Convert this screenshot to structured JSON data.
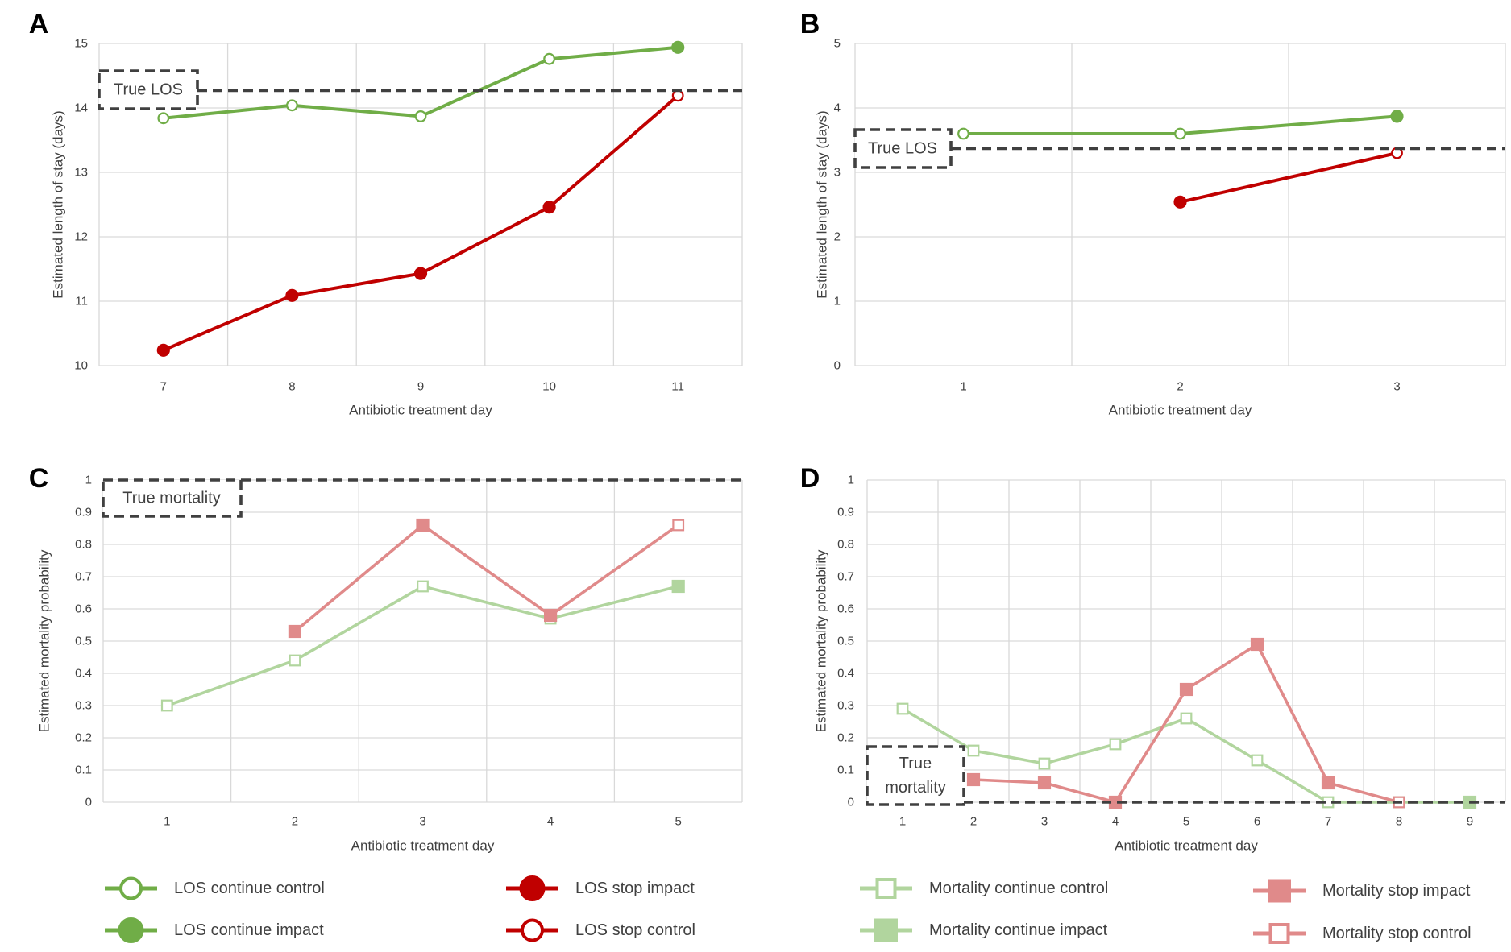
{
  "legend": [
    {
      "label": "LOS continue control",
      "color": "#70AD47",
      "marker": "circle",
      "filled": false
    },
    {
      "label": "LOS continue impact",
      "color": "#70AD47",
      "marker": "circle",
      "filled": true
    },
    {
      "label": "LOS stop impact",
      "color": "#C00000",
      "marker": "circle",
      "filled": true
    },
    {
      "label": "LOS stop control",
      "color": "#C00000",
      "marker": "circle",
      "filled": false
    },
    {
      "label": "Mortality continue control",
      "color": "#B1D59E",
      "marker": "square",
      "filled": false
    },
    {
      "label": "Mortality continue impact",
      "color": "#B1D59E",
      "marker": "square",
      "filled": true
    },
    {
      "label": "Mortality stop impact",
      "color": "#E08A8A",
      "marker": "square",
      "filled": true
    },
    {
      "label": "Mortality stop control",
      "color": "#E08A8A",
      "marker": "square",
      "filled": false
    }
  ],
  "reference_color": "#404040",
  "grid_color": "#D9D9D9",
  "chart_data": [
    {
      "panel": "A",
      "type": "line",
      "xlabel": "Antibiotic treatment day",
      "ylabel": "Estimated length of stay (days)",
      "categories": [
        "7",
        "8",
        "9",
        "10",
        "11"
      ],
      "ylim": [
        10,
        15
      ],
      "yticks": [
        "10",
        "11",
        "12",
        "13",
        "14",
        "15"
      ],
      "reference": {
        "label_lines": [
          "True LOS"
        ],
        "value": 14.27
      },
      "series": [
        {
          "legend": 0,
          "values": [
            13.84,
            14.04,
            13.87,
            14.76,
            null
          ]
        },
        {
          "legend": 1,
          "values": [
            null,
            null,
            null,
            null,
            14.94
          ]
        },
        {
          "legend": 2,
          "values": [
            10.24,
            11.09,
            11.43,
            12.46,
            null
          ]
        },
        {
          "legend": 3,
          "values": [
            null,
            null,
            null,
            null,
            14.19
          ]
        }
      ],
      "lines": [
        [
          0,
          1
        ],
        [
          2,
          3
        ]
      ]
    },
    {
      "panel": "B",
      "type": "line",
      "xlabel": "Antibiotic treatment day",
      "ylabel": "Estimated length of stay (days)",
      "categories": [
        "1",
        "2",
        "3"
      ],
      "ylim": [
        0,
        5
      ],
      "yticks": [
        "0",
        "1",
        "2",
        "3",
        "4",
        "5"
      ],
      "reference": {
        "label_lines": [
          "True LOS"
        ],
        "value": 3.37
      },
      "series": [
        {
          "legend": 0,
          "values": [
            3.6,
            3.6,
            null
          ]
        },
        {
          "legend": 1,
          "values": [
            null,
            null,
            3.87
          ]
        },
        {
          "legend": 2,
          "values": [
            null,
            2.54,
            null
          ]
        },
        {
          "legend": 3,
          "values": [
            null,
            null,
            3.3
          ]
        }
      ],
      "lines": [
        [
          0,
          1
        ],
        [
          2,
          3
        ]
      ]
    },
    {
      "panel": "C",
      "type": "line",
      "xlabel": "Antibiotic treatment day",
      "ylabel": "Estimated mortality probability",
      "categories": [
        "1",
        "2",
        "3",
        "4",
        "5"
      ],
      "ylim": [
        0,
        1
      ],
      "yticks": [
        "0",
        "0.1",
        "0.2",
        "0.3",
        "0.4",
        "0.5",
        "0.6",
        "0.7",
        "0.8",
        "0.9",
        "1"
      ],
      "reference": {
        "label_lines": [
          "True mortality"
        ],
        "value": 1
      },
      "series": [
        {
          "legend": 4,
          "values": [
            0.3,
            0.44,
            0.67,
            0.57,
            null
          ]
        },
        {
          "legend": 5,
          "values": [
            null,
            null,
            null,
            null,
            0.67
          ]
        },
        {
          "legend": 6,
          "values": [
            null,
            0.53,
            0.86,
            0.58,
            null
          ]
        },
        {
          "legend": 7,
          "values": [
            null,
            null,
            null,
            null,
            0.86
          ]
        }
      ],
      "lines": [
        [
          0,
          1
        ],
        [
          2,
          3
        ]
      ]
    },
    {
      "panel": "D",
      "type": "line",
      "xlabel": "Antibiotic treatment day",
      "ylabel": "Estimated mortality probability",
      "categories": [
        "1",
        "2",
        "3",
        "4",
        "5",
        "6",
        "7",
        "8",
        "9"
      ],
      "ylim": [
        0,
        1
      ],
      "yticks": [
        "0",
        "0.1",
        "0.2",
        "0.3",
        "0.4",
        "0.5",
        "0.6",
        "0.7",
        "0.8",
        "0.9",
        "1"
      ],
      "reference": {
        "label_lines": [
          "True",
          "mortality"
        ],
        "value": 0
      },
      "series": [
        {
          "legend": 4,
          "values": [
            0.29,
            0.16,
            0.12,
            0.18,
            0.26,
            0.13,
            0,
            0,
            null
          ]
        },
        {
          "legend": 5,
          "values": [
            null,
            null,
            null,
            null,
            null,
            null,
            null,
            null,
            0
          ]
        },
        {
          "legend": 6,
          "values": [
            null,
            0.07,
            0.06,
            0,
            0.35,
            0.49,
            0.06,
            null,
            null
          ]
        },
        {
          "legend": 7,
          "values": [
            null,
            null,
            null,
            null,
            null,
            null,
            null,
            0,
            null
          ]
        }
      ],
      "lines": [
        [
          0,
          1
        ],
        [
          2,
          3
        ]
      ]
    }
  ]
}
